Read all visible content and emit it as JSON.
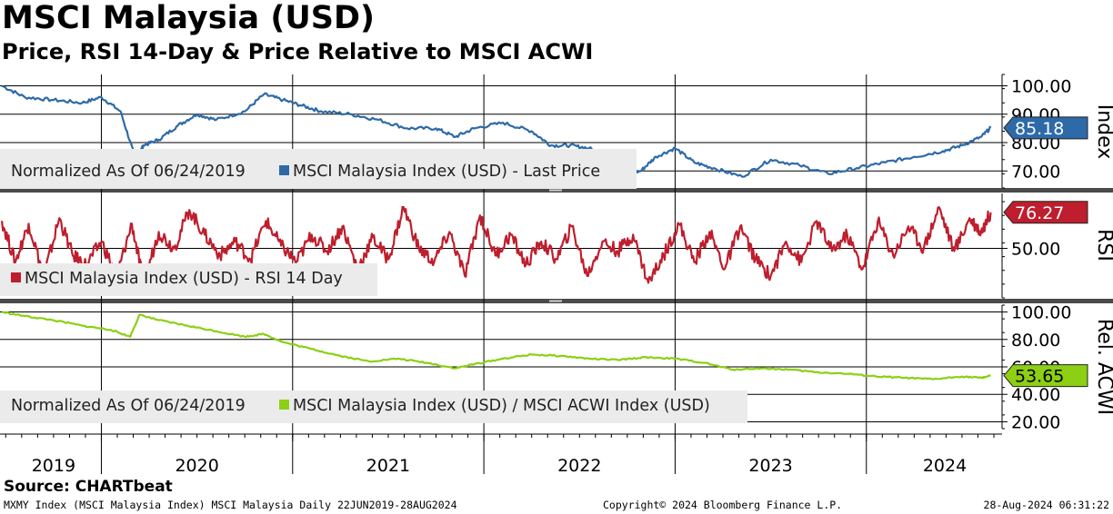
{
  "title": "MSCI Malaysia (USD)",
  "subtitle": "Price, RSI 14-Day & Price Relative to MSCI ACWI",
  "source": "Source: CHARTbeat",
  "footer": {
    "left": "MXMY Index (MSCI Malaysia Index) MSCI Malaysia  Daily 22JUN2019-28AUG2024",
    "center": "Copyright© 2024 Bloomberg Finance L.P.",
    "right": "28-Aug-2024 06:31:22"
  },
  "colors": {
    "price": "#2e6aa8",
    "price_light": "#7fa4c9",
    "rsi": "#be1e2d",
    "relative": "#8ccf14",
    "grid": "#000000"
  },
  "chart_data": [
    {
      "type": "line",
      "panel": "Index",
      "ylabel": "Index",
      "ylim": [
        64,
        104
      ],
      "yticks": [
        "100.00",
        "90.00",
        "80.00",
        "70.00"
      ],
      "yticks_values": [
        100,
        90,
        80,
        70
      ],
      "legend_note": "Normalized As Of 06/24/2019",
      "series": [
        {
          "name": "MSCI Malaysia Index (USD) - Last Price",
          "last_value_label": "85.18",
          "x": [
            2019.48,
            2019.6,
            2019.75,
            2019.9,
            2020.0,
            2020.1,
            2020.18,
            2020.22,
            2020.3,
            2020.4,
            2020.5,
            2020.6,
            2020.75,
            2020.85,
            2020.95,
            2021.05,
            2021.15,
            2021.3,
            2021.45,
            2021.6,
            2021.75,
            2021.85,
            2021.95,
            2022.1,
            2022.25,
            2022.35,
            2022.45,
            2022.55,
            2022.65,
            2022.75,
            2022.82,
            2022.9,
            2023.0,
            2023.1,
            2023.2,
            2023.35,
            2023.5,
            2023.65,
            2023.8,
            2023.95,
            2024.1,
            2024.25,
            2024.4,
            2024.5,
            2024.6,
            2024.65
          ],
          "values": [
            100,
            96,
            95,
            94,
            96,
            91,
            74,
            79,
            81,
            86,
            90,
            88,
            91,
            97,
            95,
            93,
            91,
            90,
            88,
            85,
            85,
            82,
            85,
            87,
            84,
            79,
            79,
            78,
            75,
            69,
            70,
            75,
            78,
            73,
            71,
            68,
            74,
            72,
            69,
            71,
            73,
            75,
            77,
            79,
            82,
            85.18
          ]
        }
      ]
    },
    {
      "type": "line",
      "panel": "RSI",
      "ylabel": "RSI",
      "ylim": [
        14,
        90
      ],
      "yticks": [
        "50.00"
      ],
      "yticks_values": [
        50
      ],
      "series": [
        {
          "name": "MSCI Malaysia Index (USD) - RSI 14 Day",
          "last_value_label": "76.27",
          "x": [
            2019.48,
            2019.55,
            2019.62,
            2019.7,
            2019.78,
            2019.85,
            2019.92,
            2020.0,
            2020.08,
            2020.16,
            2020.22,
            2020.3,
            2020.38,
            2020.46,
            2020.54,
            2020.62,
            2020.7,
            2020.78,
            2020.86,
            2020.94,
            2021.02,
            2021.1,
            2021.18,
            2021.26,
            2021.34,
            2021.42,
            2021.5,
            2021.58,
            2021.66,
            2021.74,
            2021.82,
            2021.9,
            2021.98,
            2022.06,
            2022.14,
            2022.22,
            2022.3,
            2022.38,
            2022.46,
            2022.54,
            2022.62,
            2022.7,
            2022.78,
            2022.86,
            2022.94,
            2023.02,
            2023.1,
            2023.18,
            2023.26,
            2023.34,
            2023.42,
            2023.5,
            2023.58,
            2023.66,
            2023.74,
            2023.82,
            2023.9,
            2023.98,
            2024.06,
            2024.14,
            2024.22,
            2024.3,
            2024.38,
            2024.46,
            2024.54,
            2024.6,
            2024.65
          ],
          "values": [
            70,
            40,
            68,
            30,
            72,
            45,
            38,
            55,
            30,
            68,
            25,
            62,
            50,
            78,
            60,
            45,
            55,
            42,
            70,
            52,
            40,
            60,
            48,
            66,
            35,
            58,
            42,
            80,
            50,
            40,
            62,
            30,
            74,
            45,
            60,
            38,
            55,
            42,
            66,
            30,
            55,
            48,
            60,
            25,
            45,
            68,
            40,
            62,
            35,
            66,
            42,
            30,
            55,
            40,
            70,
            48,
            60,
            35,
            70,
            45,
            66,
            50,
            80,
            48,
            72,
            62,
            76.27
          ]
        }
      ]
    },
    {
      "type": "line",
      "panel": "Rel. ACWI",
      "ylabel": "Rel. ACWI",
      "ylim": [
        15,
        105
      ],
      "yticks": [
        "100.00",
        "80.00",
        "60.00",
        "40.00",
        "20.00"
      ],
      "yticks_values": [
        100,
        80,
        60,
        40,
        20
      ],
      "legend_note": "Normalized As Of 06/24/2019",
      "series": [
        {
          "name": "MSCI Malaysia Index (USD) / MSCI ACWI Index (USD)",
          "last_value_label": "53.65",
          "x": [
            2019.48,
            2019.6,
            2019.75,
            2019.9,
            2020.05,
            2020.15,
            2020.2,
            2020.3,
            2020.45,
            2020.6,
            2020.75,
            2020.85,
            2020.95,
            2021.1,
            2021.25,
            2021.4,
            2021.55,
            2021.7,
            2021.85,
            2021.95,
            2022.1,
            2022.25,
            2022.4,
            2022.55,
            2022.7,
            2022.85,
            2023.0,
            2023.15,
            2023.3,
            2023.45,
            2023.6,
            2023.75,
            2023.9,
            2024.05,
            2024.2,
            2024.35,
            2024.5,
            2024.6,
            2024.65
          ],
          "values": [
            100,
            97,
            94,
            90,
            87,
            82,
            98,
            94,
            90,
            86,
            82,
            84,
            78,
            73,
            68,
            64,
            66,
            63,
            59,
            62,
            66,
            69,
            68,
            66,
            65,
            67,
            66,
            63,
            58,
            59,
            58,
            56,
            55,
            53,
            52,
            51,
            53,
            52,
            53.65
          ]
        }
      ]
    }
  ],
  "xaxis": {
    "xlim": [
      2019.47,
      2024.7
    ],
    "labels": [
      "2019",
      "2020",
      "2021",
      "2022",
      "2023",
      "2024"
    ],
    "label_positions": [
      2019.75,
      2020.5,
      2021.5,
      2022.5,
      2023.5,
      2024.41
    ],
    "year_boundaries": [
      2020.0,
      2021.0,
      2022.0,
      2023.0,
      2024.0
    ]
  }
}
